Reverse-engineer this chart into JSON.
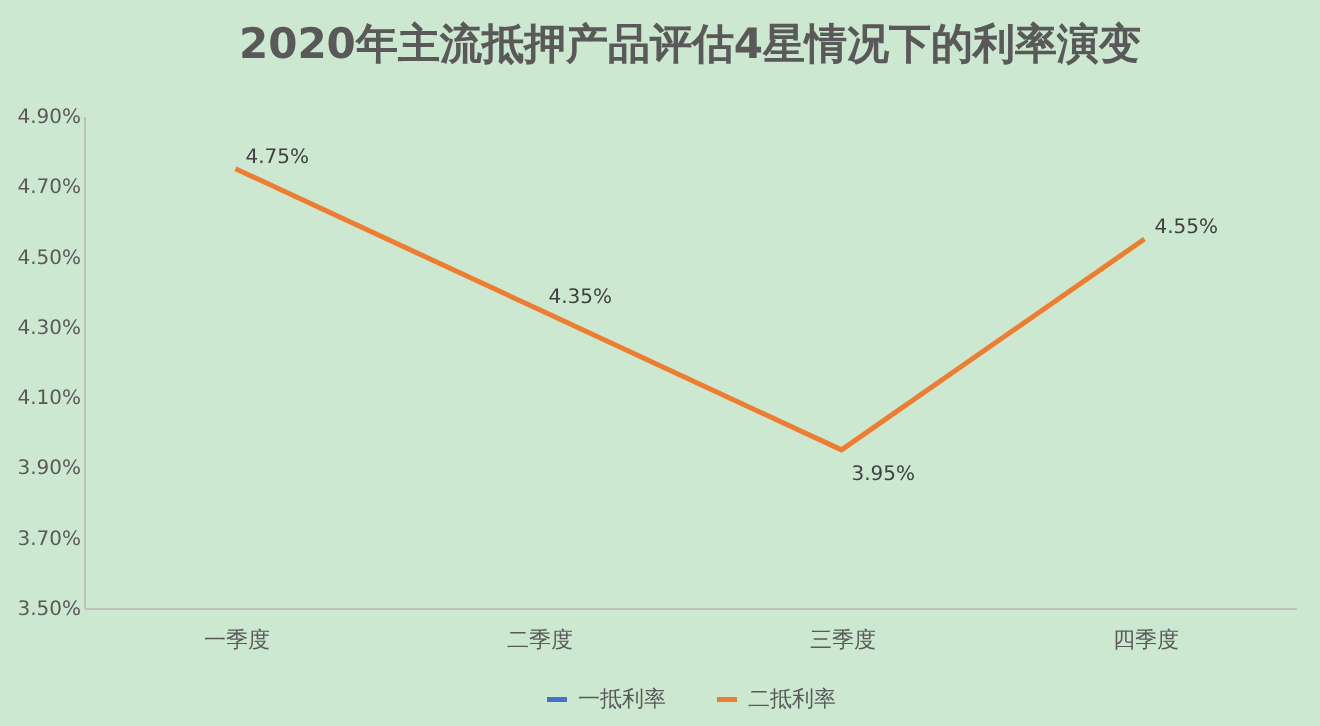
{
  "chart_data": {
    "type": "line",
    "title": "2020年主流抵押产品评估4星情况下的利率演变",
    "categories": [
      "一季度",
      "二季度",
      "三季度",
      "四季度"
    ],
    "series": [
      {
        "name": "一抵利率",
        "color": "#4472c4",
        "values": [
          null,
          null,
          null,
          null
        ]
      },
      {
        "name": "二抵利率",
        "color": "#ed7d31",
        "values": [
          4.75,
          4.35,
          3.95,
          4.55
        ],
        "value_labels": [
          "4.75%",
          "4.35%",
          "3.95%",
          "4.55%"
        ]
      }
    ],
    "ylim": [
      3.5,
      4.9
    ],
    "yticks": [
      {
        "value": 3.5,
        "label": "3.50%"
      },
      {
        "value": 3.7,
        "label": "3.70%"
      },
      {
        "value": 3.9,
        "label": "3.90%"
      },
      {
        "value": 4.1,
        "label": "4.10%"
      },
      {
        "value": 4.3,
        "label": "4.30%"
      },
      {
        "value": 4.5,
        "label": "4.50%"
      },
      {
        "value": 4.7,
        "label": "4.70%"
      },
      {
        "value": 4.9,
        "label": "4.90%"
      }
    ],
    "grid": false,
    "legend": "bottom",
    "marker": "none",
    "line_style": "solid"
  }
}
